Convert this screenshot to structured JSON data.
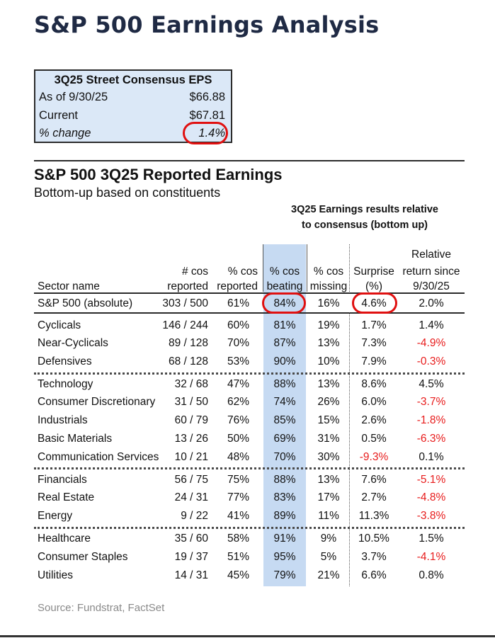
{
  "title": "S&P 500 Earnings Analysis",
  "eps_box": {
    "heading": "3Q25 Street Consensus EPS",
    "rows": [
      {
        "label": "As of 9/30/25",
        "value": "$66.88"
      },
      {
        "label": "Current",
        "value": "$67.81"
      },
      {
        "label": "% change",
        "value": "1.4%"
      }
    ]
  },
  "section": {
    "title": "S&P 500 3Q25 Reported Earnings",
    "subtitle": "Bottom-up based on constituents",
    "banner": [
      "3Q25 Earnings results relative",
      "to consensus (bottom up)"
    ]
  },
  "headers": {
    "sector": [
      "Sector name"
    ],
    "reported": [
      "# cos",
      "reported"
    ],
    "pct_reported": [
      "% cos",
      "reported"
    ],
    "beating": [
      "% cos",
      "beating"
    ],
    "missing": [
      "% cos",
      "missing"
    ],
    "surprise": [
      "Surprise",
      "(%)"
    ],
    "relative": [
      "Relative",
      "return since",
      "9/30/25"
    ]
  },
  "colors": {
    "band": "#c6daf2",
    "negative": "#e81c1c",
    "circle": "#e01010",
    "title": "#1f2a44"
  },
  "chart_data": {
    "type": "table",
    "columns": [
      "Sector name",
      "# cos reported",
      "% cos reported",
      "% cos beating",
      "% cos missing",
      "Surprise (%)",
      "Relative return since 9/30/25"
    ],
    "rows": [
      [
        "S&P 500 (absolute)",
        "303 / 500",
        "61%",
        "84%",
        "16%",
        "4.6%",
        "2.0%"
      ],
      [
        "Cyclicals",
        "146 / 244",
        "60%",
        "81%",
        "19%",
        "1.7%",
        "1.4%"
      ],
      [
        "Near-Cyclicals",
        "89 / 128",
        "70%",
        "87%",
        "13%",
        "7.3%",
        "-4.9%"
      ],
      [
        "Defensives",
        "68 / 128",
        "53%",
        "90%",
        "10%",
        "7.9%",
        "-0.3%"
      ],
      [
        "Technology",
        "32 / 68",
        "47%",
        "88%",
        "13%",
        "8.6%",
        "4.5%"
      ],
      [
        "Consumer Discretionary",
        "31 / 50",
        "62%",
        "74%",
        "26%",
        "6.0%",
        "-3.7%"
      ],
      [
        "Industrials",
        "60 / 79",
        "76%",
        "85%",
        "15%",
        "2.6%",
        "-1.8%"
      ],
      [
        "Basic Materials",
        "13 / 26",
        "50%",
        "69%",
        "31%",
        "0.5%",
        "-6.3%"
      ],
      [
        "Communication Services",
        "10 / 21",
        "48%",
        "70%",
        "30%",
        "-9.3%",
        "0.1%"
      ],
      [
        "Financials",
        "56 / 75",
        "75%",
        "88%",
        "13%",
        "7.6%",
        "-5.1%"
      ],
      [
        "Real Estate",
        "24 / 31",
        "77%",
        "83%",
        "17%",
        "2.7%",
        "-4.8%"
      ],
      [
        "Energy",
        "9 / 22",
        "41%",
        "89%",
        "11%",
        "11.3%",
        "-3.8%"
      ],
      [
        "Healthcare",
        "35 / 60",
        "58%",
        "91%",
        "9%",
        "10.5%",
        "1.5%"
      ],
      [
        "Consumer Staples",
        "19 / 37",
        "51%",
        "95%",
        "5%",
        "3.7%",
        "-4.1%"
      ],
      [
        "Utilities",
        "14 / 31",
        "45%",
        "79%",
        "21%",
        "6.6%",
        "0.8%"
      ]
    ]
  },
  "source": "Source: Fundstrat, FactSet"
}
